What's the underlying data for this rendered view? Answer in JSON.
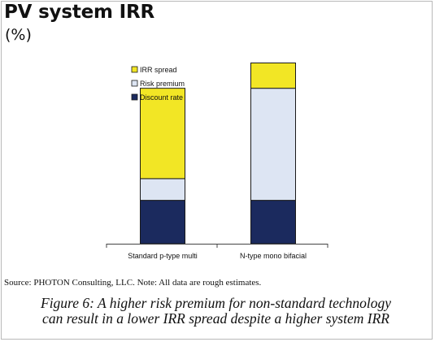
{
  "header": {
    "title": "PV system IRR",
    "subtitle": "(%)"
  },
  "chart_data": {
    "type": "bar",
    "stacked": true,
    "categories": [
      "Standard p-type multi",
      "N-type mono bifacial"
    ],
    "series": [
      {
        "name": "Discount rate",
        "color": "#1b2a5e",
        "values": [
          6,
          6
        ]
      },
      {
        "name": "Risk premium",
        "color": "#dde5f3",
        "values": [
          3,
          15.5
        ]
      },
      {
        "name": "IRR spread",
        "color": "#f2e625",
        "values": [
          12.5,
          3.5
        ]
      }
    ],
    "legend_order": [
      "IRR spread",
      "Risk premium",
      "Discount rate"
    ],
    "legend_position": "top-left",
    "ylim": [
      0,
      35
    ],
    "grid": false,
    "y_axis_visible": false
  },
  "footer": {
    "source": "Source: PHOTON Consulting, LLC. Note: All data are rough estimates.",
    "caption_line1": "Figure 6: A higher risk premium for non-standard technology",
    "caption_line2": "can result in a lower IRR spread despite a higher system IRR"
  }
}
